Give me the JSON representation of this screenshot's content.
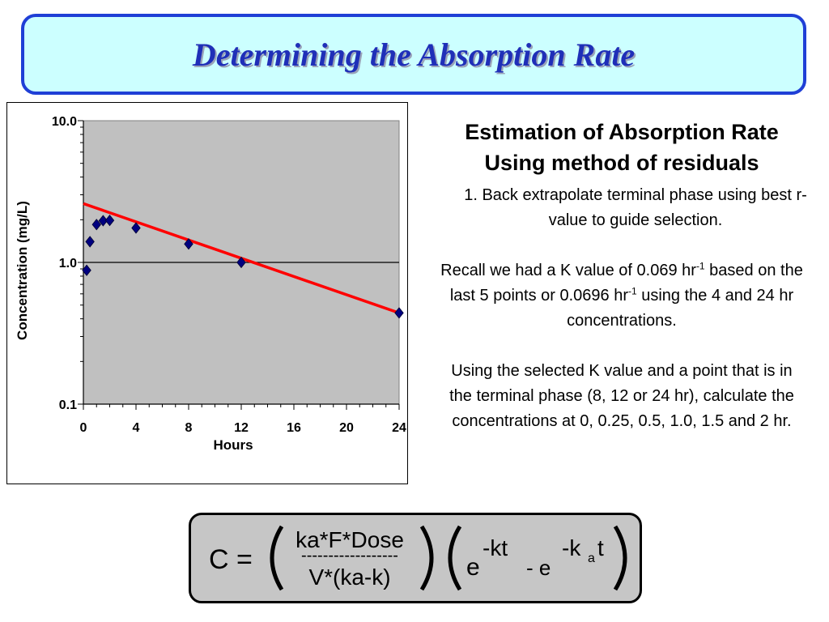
{
  "title": "Determining the Absorption Rate",
  "chart_data": {
    "type": "scatter",
    "xlabel": "Hours",
    "ylabel": "Concentration (mg/L)",
    "x_ticks": [
      "0",
      "4",
      "8",
      "12",
      "16",
      "20",
      "24"
    ],
    "y_ticks": [
      "10.0",
      "1.0",
      "0.1"
    ],
    "xlim": [
      0,
      24
    ],
    "ylim": [
      0.1,
      10
    ],
    "y_scale": "log",
    "grid": "horizontal at 1.0",
    "marker_color": "#000080",
    "line_color": "#ff0000",
    "points": [
      {
        "x": 0.25,
        "y": 0.88
      },
      {
        "x": 0.5,
        "y": 1.4
      },
      {
        "x": 1.0,
        "y": 1.85
      },
      {
        "x": 1.5,
        "y": 1.97
      },
      {
        "x": 2.0,
        "y": 1.98
      },
      {
        "x": 4.0,
        "y": 1.75
      },
      {
        "x": 8.0,
        "y": 1.35
      },
      {
        "x": 12.0,
        "y": 1.0
      },
      {
        "x": 24.0,
        "y": 0.44
      }
    ],
    "fit_line": {
      "x": [
        0,
        24
      ],
      "y": [
        2.6,
        0.44
      ]
    }
  },
  "right": {
    "heading": "Estimation of Absorption Rate Using method of residuals",
    "step1": "1. Back extrapolate terminal phase using best r-value to guide selection.",
    "recall_a": "Recall we had a K value of 0.069 hr",
    "recall_b": " based on the last 5 points or 0.0696 hr",
    "recall_c": " using the 4 and 24 hr concentrations.",
    "sup": "-1",
    "using": "Using the selected K value and a point that is in the terminal phase (8, 12 or 24 hr), calculate the concentrations at 0, 0.25, 0.5, 1.0, 1.5 and 2 hr."
  },
  "formula": {
    "lhs": "C =",
    "numerator": "ka*F*Dose",
    "dashes": "------------------",
    "denominator": "V*(ka-k)",
    "e1": "e",
    "exp1": "-kt",
    "minus": "- e",
    "exp2_k": "-k",
    "exp2_sub": "a",
    "exp2_t": "t"
  }
}
